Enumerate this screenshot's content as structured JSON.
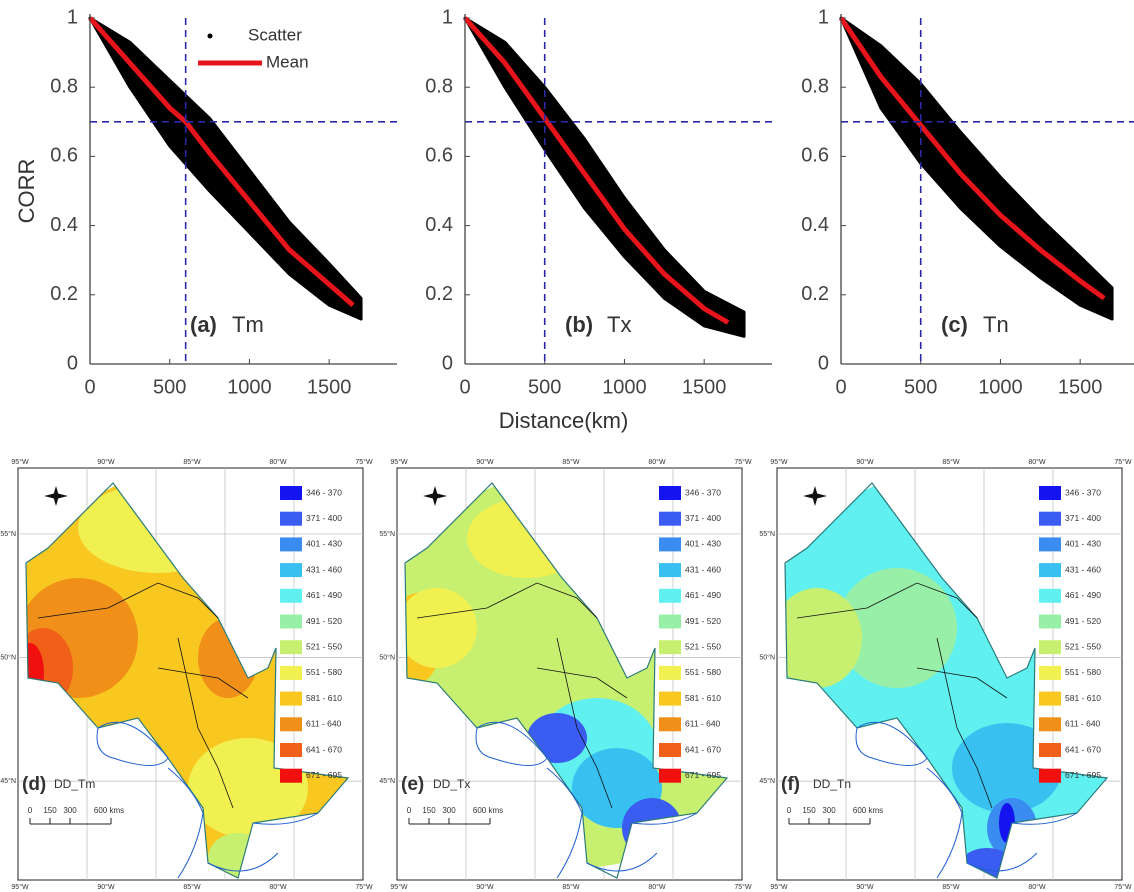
{
  "chart_data": [
    {
      "type": "scatter",
      "panel": "(a)",
      "title": "Tm",
      "ylabel": "CORR",
      "legend": "top-center",
      "xlim": [
        0,
        1800
      ],
      "xticks": [
        0,
        500,
        1000,
        1500
      ],
      "ylim": [
        0,
        1
      ],
      "yticks": [
        0,
        0.2,
        0.4,
        0.6,
        0.8,
        1
      ],
      "vline": 600,
      "hline": 0.7,
      "series": [
        {
          "name": "Scatter",
          "color": "#000000",
          "x": [
            0,
            250,
            500,
            750,
            1000,
            1250,
            1500,
            1700
          ],
          "upper": [
            1,
            0.93,
            0.82,
            0.71,
            0.56,
            0.41,
            0.29,
            0.19
          ],
          "lower": [
            1,
            0.8,
            0.63,
            0.5,
            0.38,
            0.26,
            0.17,
            0.13
          ]
        },
        {
          "name": "Mean",
          "color": "#e8141c",
          "x": [
            0,
            250,
            500,
            600,
            750,
            1000,
            1250,
            1500,
            1650
          ],
          "values": [
            1,
            0.87,
            0.74,
            0.7,
            0.61,
            0.47,
            0.33,
            0.23,
            0.17
          ]
        }
      ]
    },
    {
      "type": "scatter",
      "panel": "(b)",
      "title": "Tx",
      "xlabel": "Distance(km)",
      "xlim": [
        0,
        1800
      ],
      "xticks": [
        0,
        500,
        1000,
        1500
      ],
      "ylim": [
        0,
        1
      ],
      "yticks": [
        0,
        0.2,
        0.4,
        0.6,
        0.8,
        1
      ],
      "vline": 500,
      "hline": 0.7,
      "series": [
        {
          "color": "#000000",
          "x": [
            0,
            250,
            500,
            750,
            1000,
            1250,
            1500,
            1750
          ],
          "upper": [
            1,
            0.93,
            0.8,
            0.65,
            0.48,
            0.33,
            0.21,
            0.15
          ],
          "lower": [
            1,
            0.8,
            0.62,
            0.45,
            0.31,
            0.19,
            0.11,
            0.08
          ]
        },
        {
          "color": "#e8141c",
          "x": [
            0,
            250,
            500,
            750,
            1000,
            1250,
            1500,
            1650
          ],
          "values": [
            1,
            0.87,
            0.71,
            0.55,
            0.39,
            0.26,
            0.16,
            0.12
          ]
        }
      ]
    },
    {
      "type": "scatter",
      "panel": "(c)",
      "title": "Tn",
      "xlim": [
        0,
        1800
      ],
      "xticks": [
        0,
        500,
        1000,
        1500
      ],
      "ylim": [
        0,
        1
      ],
      "yticks": [
        0,
        0.2,
        0.4,
        0.6,
        0.8,
        1
      ],
      "vline": 500,
      "hline": 0.7,
      "series": [
        {
          "color": "#000000",
          "x": [
            0,
            250,
            500,
            750,
            1000,
            1250,
            1500,
            1700
          ],
          "upper": [
            1,
            0.92,
            0.81,
            0.67,
            0.54,
            0.42,
            0.31,
            0.22
          ],
          "lower": [
            1,
            0.74,
            0.58,
            0.45,
            0.34,
            0.25,
            0.17,
            0.13
          ]
        },
        {
          "color": "#e8141c",
          "x": [
            0,
            250,
            500,
            750,
            1000,
            1250,
            1500,
            1650
          ],
          "values": [
            1,
            0.83,
            0.69,
            0.55,
            0.43,
            0.33,
            0.24,
            0.19
          ]
        }
      ]
    }
  ],
  "maps": {
    "panels": [
      {
        "label": "(d)",
        "name": "DD_Tm"
      },
      {
        "label": "(e)",
        "name": "DD_Tx"
      },
      {
        "label": "(f)",
        "name": "DD_Tn"
      }
    ],
    "legend": [
      {
        "label": "346 - 370",
        "color": "#1414f0"
      },
      {
        "label": "371 - 400",
        "color": "#3a5cf0"
      },
      {
        "label": "401 - 430",
        "color": "#3a8cf0"
      },
      {
        "label": "431 - 460",
        "color": "#38c0f0"
      },
      {
        "label": "461 - 490",
        "color": "#60f0f0"
      },
      {
        "label": "491 - 520",
        "color": "#98f0a8"
      },
      {
        "label": "521 - 550",
        "color": "#c8f070"
      },
      {
        "label": "551 - 580",
        "color": "#f0f050"
      },
      {
        "label": "581 - 610",
        "color": "#f8c820"
      },
      {
        "label": "611 - 640",
        "color": "#f09018"
      },
      {
        "label": "641 - 670",
        "color": "#f06018"
      },
      {
        "label": "671 - 695",
        "color": "#f01010"
      }
    ],
    "lon_labels": [
      "95°W",
      "90°W",
      "85°W",
      "80°W",
      "75°W"
    ],
    "lat_labels": [
      "55°N",
      "50°N",
      "45°N"
    ],
    "scale_labels": [
      "0",
      "150",
      "300",
      "600 kms"
    ]
  }
}
